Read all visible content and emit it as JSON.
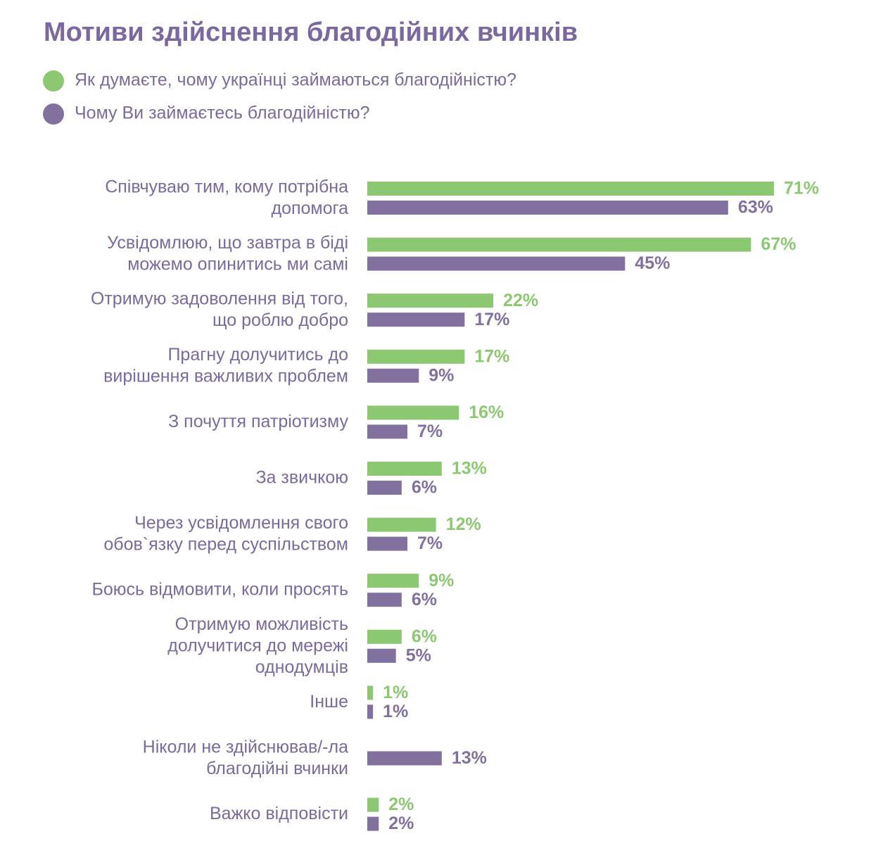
{
  "chart_data": {
    "type": "bar",
    "orientation": "horizontal",
    "title": "Мотиви здійснення благодійних вчинків",
    "categories": [
      "Співчуваю тим, кому потрібна\nдопомога",
      "Усвідомлюю, що завтра в біді\nможемо опинитись ми самі",
      "Отримую задоволення від того,\nщо роблю добро",
      "Прагну долучитись до\nвирішення важливих проблем",
      "З почуття патріотизму",
      "За звичкою",
      "Через усвідомлення свого\nобов`язку перед суспільством",
      "Боюсь відмовити, коли просять",
      "Отримую можливість\nдолучитися до мережі\nоднодумців",
      "Інше",
      "Ніколи не здійснював/-ла\nблагодійні вчинки",
      "Важко відповісти"
    ],
    "series": [
      {
        "name": "Як думаєте, чому українці займаються благодійністю?",
        "color": "#8cc872",
        "values": [
          71,
          67,
          22,
          17,
          16,
          13,
          12,
          9,
          6,
          1,
          null,
          2
        ],
        "value_labels": [
          "71%",
          "67%",
          "22%",
          "17%",
          "16%",
          "13%",
          "12%",
          "9%",
          "6%",
          "1%",
          null,
          "2%"
        ]
      },
      {
        "name": "Чому Ви займаєтесь благодійністю?",
        "color": "#82709f",
        "values": [
          63,
          45,
          17,
          9,
          7,
          6,
          7,
          6,
          5,
          1,
          13,
          2
        ],
        "value_labels": [
          "63%",
          "45%",
          "17%",
          "9%",
          "7%",
          "6%",
          "7%",
          "6%",
          "5%",
          "1%",
          "13%",
          "2%"
        ]
      }
    ]
  }
}
